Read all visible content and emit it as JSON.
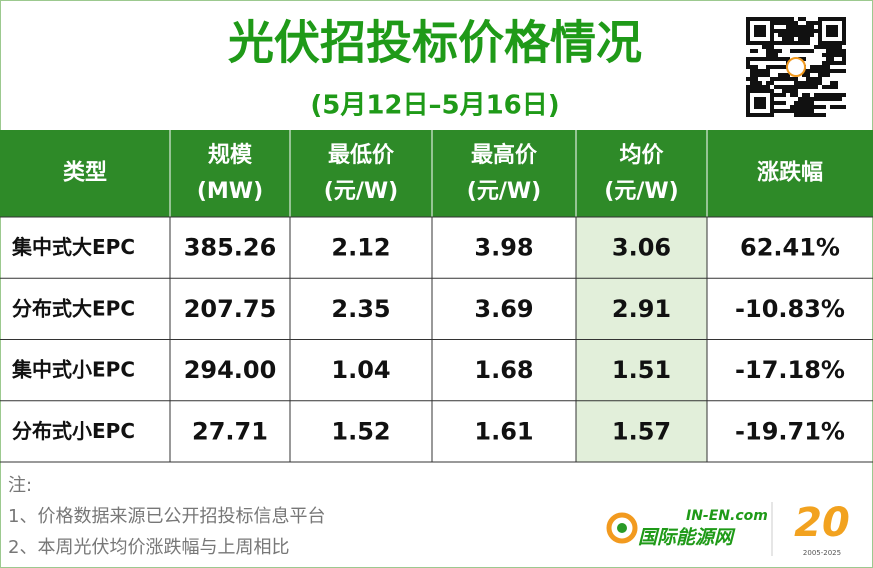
{
  "header": {
    "title": "光伏招投标价格情况",
    "subtitle": "(5月12日–5月16日)"
  },
  "table": {
    "columns": [
      [
        "类型"
      ],
      [
        "规模",
        "(MW)"
      ],
      [
        "最低价",
        "(元/W)"
      ],
      [
        "最高价",
        "(元/W)"
      ],
      [
        "均价",
        "(元/W)"
      ],
      [
        "涨跌幅"
      ]
    ],
    "rows": [
      [
        "集中式大EPC",
        "385.26",
        "2.12",
        "3.98",
        "3.06",
        "62.41%"
      ],
      [
        "分布式大EPC",
        "207.75",
        "2.35",
        "3.69",
        "2.91",
        "-10.83%"
      ],
      [
        "集中式小EPC",
        "294.00",
        "1.04",
        "1.68",
        "1.51",
        "-17.18%"
      ],
      [
        "分布式小EPC",
        "27.71",
        "1.52",
        "1.61",
        "1.57",
        "-19.71%"
      ]
    ]
  },
  "notes": {
    "label": "注:",
    "items": [
      "1、价格数据来源已公开招投标信息平台",
      "2、本周光伏均价涨跌幅与上周相比"
    ]
  },
  "logo": {
    "domain": "IN-EN.com",
    "name": "国际能源网",
    "years": "2005-2025"
  }
}
